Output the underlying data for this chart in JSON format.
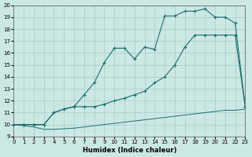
{
  "xlabel": "Humidex (Indice chaleur)",
  "xlim": [
    0,
    23
  ],
  "ylim": [
    9,
    20
  ],
  "xticks": [
    0,
    1,
    2,
    3,
    4,
    5,
    6,
    7,
    8,
    9,
    10,
    11,
    12,
    13,
    14,
    15,
    16,
    17,
    18,
    19,
    20,
    21,
    22,
    23
  ],
  "yticks": [
    9,
    10,
    11,
    12,
    13,
    14,
    15,
    16,
    17,
    18,
    19,
    20
  ],
  "bg_color": "#cce8e4",
  "line_color": "#1a7068",
  "grid_color": "#a8ccc8",
  "line_bottom_x": [
    0,
    1,
    2,
    3,
    4,
    5,
    6,
    7,
    8,
    9,
    10,
    11,
    12,
    13,
    14,
    15,
    16,
    17,
    18,
    19,
    20,
    21,
    22,
    23
  ],
  "line_bottom_y": [
    10.0,
    9.9,
    9.8,
    9.6,
    9.6,
    9.65,
    9.7,
    9.8,
    9.9,
    10.0,
    10.1,
    10.2,
    10.3,
    10.4,
    10.5,
    10.6,
    10.7,
    10.8,
    10.9,
    11.0,
    11.1,
    11.2,
    11.2,
    11.3
  ],
  "line_mid_x": [
    0,
    1,
    2,
    3,
    4,
    5,
    6,
    7,
    8,
    9,
    10,
    11,
    12,
    13,
    14,
    15,
    16,
    17,
    18,
    19,
    20,
    21,
    22,
    23
  ],
  "line_mid_y": [
    10.0,
    10.0,
    10.0,
    10.0,
    11.0,
    11.3,
    11.5,
    11.5,
    11.5,
    11.7,
    12.0,
    12.2,
    12.5,
    12.8,
    13.5,
    14.0,
    15.0,
    16.5,
    17.5,
    17.5,
    17.5,
    17.5,
    17.5,
    11.5
  ],
  "line_top_x": [
    0,
    1,
    2,
    3,
    4,
    5,
    6,
    7,
    8,
    9,
    10,
    11,
    12,
    13,
    14,
    15,
    16,
    17,
    18,
    19,
    20,
    21,
    22,
    23
  ],
  "line_top_y": [
    10.0,
    10.0,
    10.0,
    10.0,
    11.0,
    11.3,
    11.5,
    12.5,
    13.5,
    15.2,
    16.4,
    16.4,
    15.5,
    16.5,
    16.3,
    19.1,
    19.1,
    19.5,
    19.5,
    19.7,
    19.0,
    19.0,
    18.5,
    11.5
  ]
}
